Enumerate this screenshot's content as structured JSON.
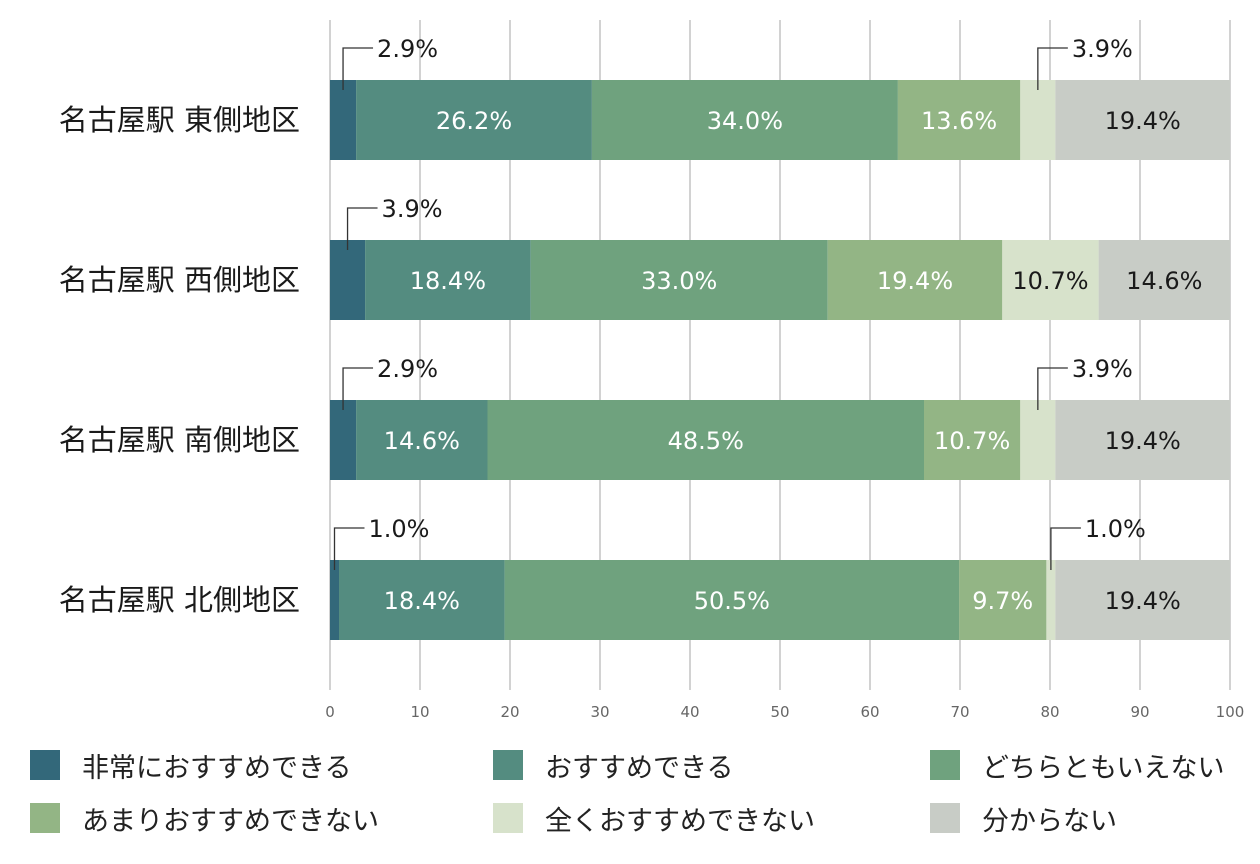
{
  "chart_data": {
    "type": "bar",
    "orientation": "horizontal",
    "stacked": true,
    "categories": [
      "名古屋駅 東側地区",
      "名古屋駅 西側地区",
      "名古屋駅 南側地区",
      "名古屋駅 北側地区"
    ],
    "series": [
      {
        "name": "非常におすすめできる",
        "color": "#33687a",
        "values": [
          2.9,
          3.9,
          2.9,
          1.0
        ],
        "labels": [
          "2.9%",
          "3.9%",
          "2.9%",
          "1.0%"
        ]
      },
      {
        "name": "おすすめできる",
        "color": "#548c80",
        "values": [
          26.2,
          18.4,
          14.6,
          18.4
        ],
        "labels": [
          "26.2%",
          "18.4%",
          "14.6%",
          "18.4%"
        ]
      },
      {
        "name": "どちらともいえない",
        "color": "#6fa27e",
        "values": [
          34.0,
          33.0,
          48.5,
          50.5
        ],
        "labels": [
          "34.0%",
          "33.0%",
          "48.5%",
          "50.5%"
        ]
      },
      {
        "name": "あまりおすすめできない",
        "color": "#93b585",
        "values": [
          13.6,
          19.4,
          10.7,
          9.7
        ],
        "labels": [
          "13.6%",
          "19.4%",
          "10.7%",
          "9.7%"
        ]
      },
      {
        "name": "全くおすすめできない",
        "color": "#d7e2cb",
        "values": [
          3.9,
          10.7,
          3.9,
          1.0
        ],
        "labels": [
          "3.9%",
          "10.7%",
          "3.9%",
          "1.0%"
        ]
      },
      {
        "name": "分からない",
        "color": "#c8ccc6",
        "values": [
          19.4,
          14.6,
          19.4,
          19.4
        ],
        "labels": [
          "19.4%",
          "14.6%",
          "19.4%",
          "19.4%"
        ]
      }
    ],
    "xlim": [
      0,
      100
    ],
    "xticks": [
      "0",
      "10",
      "20",
      "30",
      "40",
      "50",
      "60",
      "70",
      "80",
      "90",
      "100"
    ],
    "grid": true,
    "legend_position": "bottom"
  }
}
